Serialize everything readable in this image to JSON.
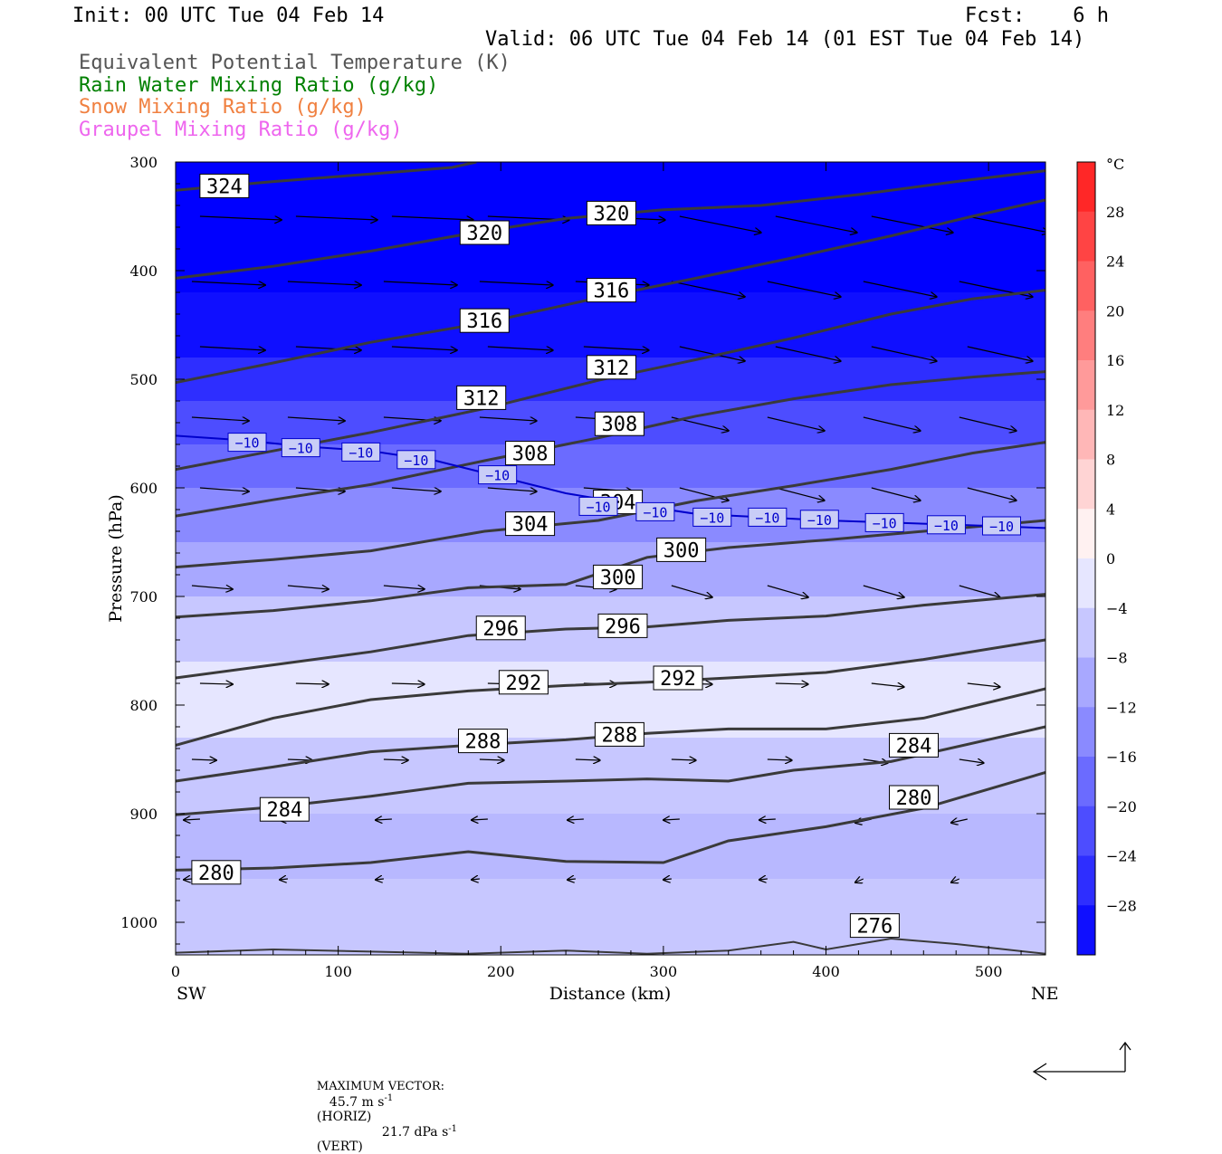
{
  "header": {
    "init": "Init: 00 UTC Tue 04 Feb 14",
    "fcst": "Fcst:    6 h",
    "valid": "Valid: 06 UTC Tue 04 Feb 14 (01 EST Tue 04 Feb 14)",
    "fields": [
      {
        "label": "Equivalent Potential Temperature (K)",
        "color": "#555555"
      },
      {
        "label": "Rain Water Mixing Ratio (g/kg)",
        "color": "#008000"
      },
      {
        "label": "Snow Mixing Ratio (g/kg)",
        "color": "#f08040"
      },
      {
        "label": "Graupel Mixing Ratio (g/kg)",
        "color": "#ee66ee"
      }
    ]
  },
  "footer": {
    "max_vector_label": "MAXIMUM VECTOR:",
    "horiz_value": "45.7 m s",
    "horiz_unit_sup": "-1",
    "horiz_tag": "(HORIZ)",
    "vert_value": "21.7 dPa s",
    "vert_unit_sup": "-1",
    "vert_tag": "(VERT)"
  },
  "chart_data": {
    "type": "cross-section",
    "xlabel": "Distance (km)",
    "ylabel": "Pressure (hPa)",
    "x_ticks": [
      0,
      100,
      200,
      300,
      400,
      500
    ],
    "x_range": [
      0,
      535
    ],
    "y_ticks": [
      300,
      400,
      500,
      600,
      700,
      800,
      900,
      1000
    ],
    "y_range": [
      300,
      1030
    ],
    "y_scale": "linear (inverted)",
    "left_end_label": "SW",
    "right_end_label": "NE",
    "colorbar": {
      "unit": "°C",
      "labels": [
        "28",
        "24",
        "20",
        "16",
        "12",
        "8",
        "4",
        "0",
        "−4",
        "−8",
        "−12",
        "−16",
        "−20",
        "−24",
        "−28"
      ],
      "range": [
        -32,
        32
      ],
      "step": 4
    },
    "temperature_contour": {
      "value": -10,
      "label": "−10",
      "color": "#0000cc",
      "points": [
        [
          0,
          552
        ],
        [
          40,
          556
        ],
        [
          80,
          562
        ],
        [
          120,
          566
        ],
        [
          160,
          575
        ],
        [
          200,
          590
        ],
        [
          240,
          605
        ],
        [
          280,
          615
        ],
        [
          320,
          624
        ],
        [
          360,
          627
        ],
        [
          400,
          630
        ],
        [
          440,
          632
        ],
        [
          480,
          634
        ],
        [
          535,
          637
        ]
      ],
      "label_positions": [
        [
          44,
          558
        ],
        [
          77,
          563
        ],
        [
          114,
          567
        ],
        [
          148,
          574
        ],
        [
          198,
          588
        ],
        [
          260,
          617
        ],
        [
          295,
          622
        ],
        [
          330,
          627
        ],
        [
          364,
          627
        ],
        [
          396,
          629
        ],
        [
          436,
          632
        ],
        [
          474,
          634
        ],
        [
          508,
          635
        ]
      ]
    },
    "theta_e_contours": [
      {
        "value": 324,
        "points": [
          [
            0,
            326
          ],
          [
            60,
            318
          ],
          [
            120,
            311
          ],
          [
            170,
            305
          ],
          [
            185,
            300
          ]
        ],
        "labels": [
          [
            30,
            322
          ]
        ]
      },
      {
        "value": 320,
        "points": [
          [
            0,
            407
          ],
          [
            60,
            396
          ],
          [
            120,
            382
          ],
          [
            180,
            366
          ],
          [
            240,
            352
          ],
          [
            300,
            344
          ],
          [
            360,
            340
          ],
          [
            420,
            330
          ],
          [
            480,
            318
          ],
          [
            535,
            308
          ]
        ],
        "labels": [
          [
            190,
            365
          ],
          [
            268,
            347
          ]
        ]
      },
      {
        "value": 316,
        "points": [
          [
            0,
            503
          ],
          [
            60,
            485
          ],
          [
            120,
            466
          ],
          [
            190,
            448
          ],
          [
            260,
            425
          ],
          [
            320,
            407
          ],
          [
            380,
            388
          ],
          [
            440,
            368
          ],
          [
            490,
            350
          ],
          [
            535,
            335
          ]
        ],
        "labels": [
          [
            190,
            446
          ],
          [
            268,
            418
          ]
        ]
      },
      {
        "value": 312,
        "points": [
          [
            0,
            583
          ],
          [
            60,
            566
          ],
          [
            120,
            549
          ],
          [
            190,
            527
          ],
          [
            260,
            501
          ],
          [
            320,
            482
          ],
          [
            380,
            462
          ],
          [
            440,
            440
          ],
          [
            490,
            426
          ],
          [
            535,
            418
          ]
        ],
        "labels": [
          [
            188,
            517
          ],
          [
            268,
            489
          ]
        ]
      },
      {
        "value": 308,
        "points": [
          [
            0,
            626
          ],
          [
            60,
            611
          ],
          [
            120,
            597
          ],
          [
            190,
            575
          ],
          [
            260,
            554
          ],
          [
            320,
            534
          ],
          [
            380,
            518
          ],
          [
            440,
            505
          ],
          [
            490,
            498
          ],
          [
            535,
            493
          ]
        ],
        "labels": [
          [
            218,
            568
          ],
          [
            273,
            541
          ]
        ]
      },
      {
        "value": 304,
        "points": [
          [
            0,
            673
          ],
          [
            60,
            666
          ],
          [
            120,
            658
          ],
          [
            190,
            640
          ],
          [
            260,
            630
          ],
          [
            320,
            612
          ],
          [
            380,
            598
          ],
          [
            440,
            583
          ],
          [
            490,
            568
          ],
          [
            535,
            558
          ]
        ],
        "labels": [
          [
            218,
            633
          ],
          [
            272,
            613
          ]
        ]
      },
      {
        "value": 300,
        "points": [
          [
            0,
            719
          ],
          [
            60,
            713
          ],
          [
            120,
            704
          ],
          [
            180,
            692
          ],
          [
            240,
            689
          ],
          [
            290,
            664
          ],
          [
            340,
            655
          ],
          [
            400,
            648
          ],
          [
            460,
            640
          ],
          [
            535,
            630
          ]
        ],
        "labels": [
          [
            272,
            682
          ],
          [
            311,
            657
          ]
        ]
      },
      {
        "value": 296,
        "points": [
          [
            0,
            775
          ],
          [
            60,
            763
          ],
          [
            120,
            751
          ],
          [
            180,
            736
          ],
          [
            240,
            730
          ],
          [
            290,
            728
          ],
          [
            340,
            722
          ],
          [
            400,
            718
          ],
          [
            460,
            708
          ],
          [
            535,
            698
          ]
        ],
        "labels": [
          [
            200,
            729
          ],
          [
            275,
            727
          ]
        ]
      },
      {
        "value": 292,
        "points": [
          [
            0,
            837
          ],
          [
            60,
            812
          ],
          [
            120,
            795
          ],
          [
            180,
            787
          ],
          [
            240,
            782
          ],
          [
            290,
            779
          ],
          [
            340,
            775
          ],
          [
            400,
            770
          ],
          [
            460,
            758
          ],
          [
            535,
            740
          ]
        ],
        "labels": [
          [
            214,
            779
          ],
          [
            309,
            775
          ]
        ]
      },
      {
        "value": 288,
        "points": [
          [
            0,
            870
          ],
          [
            60,
            857
          ],
          [
            120,
            843
          ],
          [
            180,
            837
          ],
          [
            240,
            832
          ],
          [
            290,
            826
          ],
          [
            340,
            822
          ],
          [
            400,
            822
          ],
          [
            460,
            812
          ],
          [
            535,
            785
          ]
        ],
        "labels": [
          [
            189,
            833
          ],
          [
            273,
            827
          ]
        ]
      },
      {
        "value": 284,
        "points": [
          [
            0,
            901
          ],
          [
            60,
            894
          ],
          [
            120,
            884
          ],
          [
            180,
            872
          ],
          [
            240,
            870
          ],
          [
            290,
            868
          ],
          [
            340,
            870
          ],
          [
            380,
            860
          ],
          [
            440,
            852
          ],
          [
            535,
            820
          ]
        ],
        "labels": [
          [
            67,
            896
          ],
          [
            454,
            837
          ]
        ]
      },
      {
        "value": 280,
        "points": [
          [
            0,
            952
          ],
          [
            60,
            950
          ],
          [
            120,
            945
          ],
          [
            180,
            935
          ],
          [
            240,
            944
          ],
          [
            300,
            945
          ],
          [
            340,
            925
          ],
          [
            400,
            912
          ],
          [
            460,
            895
          ],
          [
            535,
            862
          ]
        ],
        "labels": [
          [
            25,
            954
          ],
          [
            454,
            885
          ]
        ]
      },
      {
        "value": 276,
        "points": [
          [
            0,
            1028
          ],
          [
            60,
            1025
          ],
          [
            120,
            1027
          ],
          [
            180,
            1029
          ],
          [
            240,
            1026
          ],
          [
            290,
            1029
          ],
          [
            340,
            1026
          ],
          [
            380,
            1018
          ],
          [
            400,
            1025
          ],
          [
            440,
            1015
          ],
          [
            480,
            1020
          ],
          [
            535,
            1029
          ]
        ],
        "labels": [
          [
            430,
            1003
          ]
        ]
      }
    ],
    "temperature_shading_layers_c": [
      {
        "p_top": 300,
        "t": -32
      },
      {
        "p_top": 420,
        "t": -30
      },
      {
        "p_top": 480,
        "t": -26
      },
      {
        "p_top": 520,
        "t": -22
      },
      {
        "p_top": 560,
        "t": -18
      },
      {
        "p_top": 600,
        "t": -14
      },
      {
        "p_top": 650,
        "t": -10
      },
      {
        "p_top": 700,
        "t": -6
      },
      {
        "p_top": 760,
        "t": -2
      },
      {
        "p_top": 830,
        "t": -6
      },
      {
        "p_top": 900,
        "t": -8
      },
      {
        "p_top": 960,
        "t": -6
      }
    ]
  }
}
